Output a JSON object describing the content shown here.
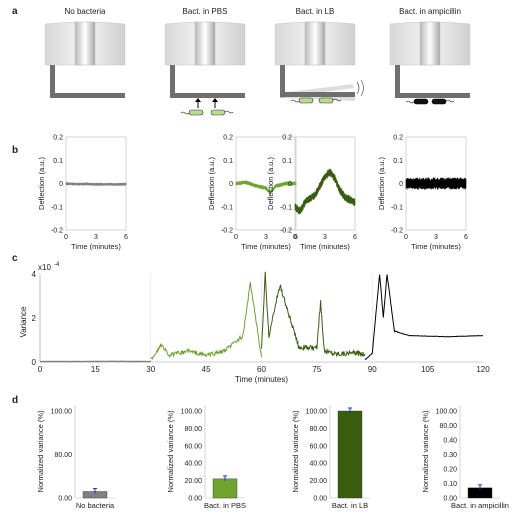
{
  "panels": {
    "a": {
      "letter": "a",
      "titles": [
        "No bacteria",
        "Bact. in PBS",
        "Bact. in LB",
        "Bact. in ampicillin"
      ]
    },
    "b": {
      "letter": "b",
      "ylabel": "Deflection (a.u.)",
      "xlabel": "Time (minutes)",
      "yticks": [
        "0.2",
        "0.1",
        "0",
        "-0.1",
        "-0.2"
      ],
      "xticks": [
        "0",
        "3",
        "6"
      ]
    },
    "c": {
      "letter": "c",
      "scale_label": "x10",
      "scale_exp": "-4",
      "ylabel": "Variance",
      "xlabel": "Time (minutes)",
      "yticks": [
        "4",
        "2",
        "0"
      ],
      "xticks": [
        "0",
        "15",
        "30",
        "45",
        "60",
        "75",
        "90",
        "105",
        "120"
      ]
    },
    "d": {
      "letter": "d",
      "ylabel": "Normalized variance (%)",
      "charts": [
        {
          "label": "No bacteria",
          "ticks": [
            "100.00",
            "80.00",
            "0.00"
          ],
          "value": 0.6,
          "color": "#808080"
        },
        {
          "label": "Bact. in PBS",
          "ticks": [
            "100.00",
            "80.00",
            "60.00",
            "40.00",
            "20.00",
            "0.00"
          ],
          "value": 22,
          "color": "#6fa52f"
        },
        {
          "label": "Bact. in LB",
          "ticks": [
            "100.00",
            "80.00",
            "60.00",
            "40.00",
            "20.00",
            "0.00"
          ],
          "value": 100,
          "color": "#3a5e10"
        },
        {
          "label": "Bact. in ampicillin",
          "ticks": [
            "100.00",
            "80.00",
            "0.40",
            "0.30",
            "0.20",
            "0.10",
            "0.00"
          ],
          "value": 0.07,
          "color": "#000000"
        }
      ]
    }
  },
  "colors": {
    "none": "#808080",
    "pbs": "#6fa52f",
    "lb": "#3a5e10",
    "amp": "#000000",
    "error_bar": "#2233bb"
  },
  "chart_data": [
    {
      "type": "line",
      "panel": "b",
      "xlabel": "Time (minutes)",
      "ylabel": "Deflection (a.u.)",
      "xlim": [
        0,
        6
      ],
      "ylim": [
        -0.2,
        0.2
      ],
      "series": [
        {
          "name": "No bacteria",
          "x": [
            0,
            1,
            2,
            3,
            4,
            5,
            6
          ],
          "y": [
            0,
            -0.003,
            -0.002,
            -0.004,
            -0.003,
            -0.004,
            -0.003
          ]
        },
        {
          "name": "Bact. in PBS",
          "x": [
            0,
            1,
            2,
            3,
            3.4,
            4,
            5,
            6
          ],
          "y": [
            0,
            0.005,
            -0.01,
            -0.02,
            -0.04,
            -0.01,
            0,
            0
          ]
        },
        {
          "name": "Bact. in LB",
          "x": [
            0,
            0.5,
            1,
            2,
            3,
            3.5,
            4,
            4.5,
            5,
            6
          ],
          "y": [
            -0.1,
            -0.12,
            -0.08,
            -0.05,
            0.03,
            0.05,
            0.02,
            -0.03,
            -0.06,
            -0.08
          ]
        },
        {
          "name": "Bact. in ampicillin",
          "x": [
            0,
            1,
            2,
            3,
            4,
            5,
            6
          ],
          "y": [
            0,
            0,
            0,
            0,
            0,
            0,
            0
          ]
        }
      ]
    },
    {
      "type": "line",
      "panel": "c",
      "xlabel": "Time (minutes)",
      "ylabel": "Variance",
      "xlim": [
        0,
        120
      ],
      "ylim": [
        0,
        4
      ],
      "series": [
        {
          "name": "No bacteria",
          "x": [
            0,
            10,
            20,
            30
          ],
          "y": [
            0.02,
            0.02,
            0.03,
            0.02
          ]
        },
        {
          "name": "Bact. in PBS",
          "x": [
            30,
            33,
            35,
            40,
            45,
            50,
            55,
            57,
            60
          ],
          "y": [
            0.1,
            0.8,
            0.3,
            0.5,
            0.3,
            0.5,
            1.2,
            3.6,
            0.2
          ]
        },
        {
          "name": "Bact. in LB",
          "x": [
            60,
            61,
            62,
            65,
            70,
            75,
            76,
            77,
            80,
            88
          ],
          "y": [
            0.5,
            4.0,
            1.2,
            3.5,
            0.7,
            0.6,
            2.8,
            0.5,
            0.4,
            0.4
          ]
        },
        {
          "name": "Bact. in ampicillin",
          "x": [
            88,
            90,
            92,
            93,
            94,
            96,
            100,
            110,
            120
          ],
          "y": [
            0.1,
            0.4,
            4.0,
            2.0,
            4.0,
            1.4,
            1.2,
            1.15,
            1.2
          ]
        }
      ]
    },
    {
      "type": "bar",
      "panel": "d",
      "ylabel": "Normalized variance (%)",
      "categories": [
        "No bacteria",
        "Bact. in PBS",
        "Bact. in LB",
        "Bact. in ampicillin"
      ],
      "values": [
        0.6,
        22,
        100,
        0.07
      ]
    }
  ]
}
